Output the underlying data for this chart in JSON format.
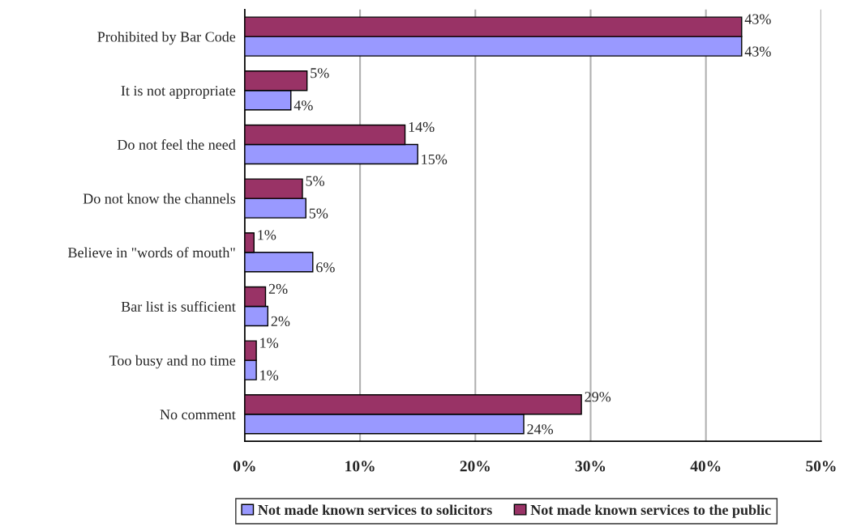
{
  "chart_data": {
    "type": "bar",
    "orientation": "horizontal",
    "categories": [
      "Prohibited by Bar Code",
      "It is not appropriate",
      "Do not feel the need",
      "Do not know the channels",
      "Believe in \"words of mouth\"",
      "Bar list is sufficient",
      "Too busy and no time",
      "No comment"
    ],
    "series": [
      {
        "name": "Not made known services to solicitors",
        "color": "#9999ff",
        "values": [
          43.1,
          4.0,
          15.0,
          5.3,
          5.9,
          2.0,
          1.0,
          24.2
        ],
        "value_labels": [
          "43%",
          "4%",
          "15%",
          "5%",
          "6%",
          "2%",
          "1%",
          "24%"
        ]
      },
      {
        "name": "Not made known services to the public",
        "color": "#993366",
        "values": [
          43.1,
          5.4,
          13.9,
          5.0,
          0.8,
          1.8,
          1.0,
          29.2
        ],
        "value_labels": [
          "43%",
          "5%",
          "14%",
          "5%",
          "1%",
          "2%",
          "1%",
          "29%"
        ]
      }
    ],
    "xlim": [
      0,
      50
    ],
    "xticks": [
      {
        "value": 0,
        "label": "0%"
      },
      {
        "value": 10,
        "label": "10%"
      },
      {
        "value": 20,
        "label": "20%"
      },
      {
        "value": 30,
        "label": "30%"
      },
      {
        "value": 40,
        "label": "40%"
      },
      {
        "value": 50,
        "label": "50%"
      }
    ],
    "grid": "x",
    "legend": "bottom"
  }
}
